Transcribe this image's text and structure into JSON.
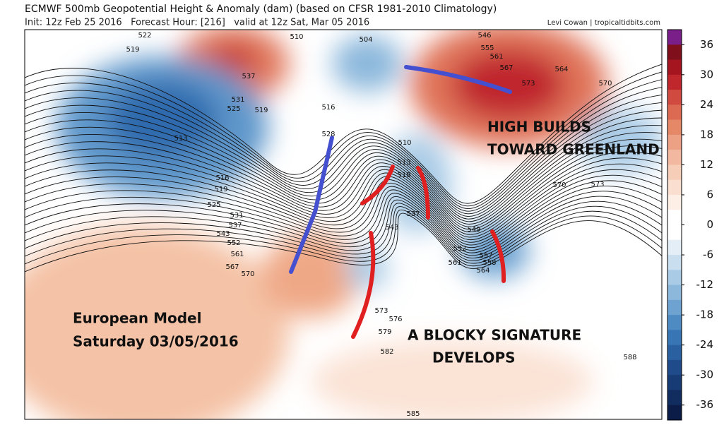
{
  "header": {
    "title": "ECMWF 500mb Geopotential Height & Anomaly (dam) (based on CFSR 1981-2010 Climatology)",
    "subtitle": "Init: 12z Feb 25 2016   Forecast Hour: [216]   valid at 12z Sat, Mar 05 2016",
    "credit": "Levi Cowan | tropicaltidbits.com"
  },
  "annotations": {
    "greenland": [
      "HIGH BUILDS",
      "TOWARD GREENLAND"
    ],
    "model": [
      "European Model",
      "Saturday 03/05/2016"
    ],
    "blocky": [
      "A BLOCKY SIGNATURE",
      "DEVELOPS"
    ]
  },
  "contour_labels": [
    "522",
    "519",
    "510",
    "504",
    "546",
    "555",
    "561",
    "567",
    "564",
    "573",
    "570",
    "537",
    "531",
    "525",
    "519",
    "516",
    "528",
    "513",
    "510",
    "513",
    "519",
    "570",
    "573",
    "516",
    "519",
    "525",
    "531",
    "537",
    "543",
    "552",
    "561",
    "567",
    "570",
    "537",
    "543",
    "549",
    "552",
    "557",
    "558",
    "564",
    "561",
    "573",
    "576",
    "579",
    "582",
    "585",
    "588"
  ],
  "colorbar": {
    "lim": [
      39,
      -39
    ],
    "ticks": [
      36,
      30,
      24,
      18,
      12,
      6,
      0,
      -6,
      -12,
      -18,
      -24,
      -30,
      -36
    ],
    "colors": [
      "#7a1e8a",
      "#7f0f1a",
      "#a5151f",
      "#c0272d",
      "#d04a3f",
      "#dc6a53",
      "#e58868",
      "#eca184",
      "#f2b9a0",
      "#f6cdb7",
      "#fadfd0",
      "#fdeee6",
      "#ffffff",
      "#ffffff",
      "#e4eef6",
      "#c9dff0",
      "#a9cbe6",
      "#8cb8dc",
      "#6ea3d1",
      "#4f8bc3",
      "#3875b5",
      "#2a5fa0",
      "#1f4b8a",
      "#173b74",
      "#112c5e",
      "#0b1c48"
    ]
  }
}
